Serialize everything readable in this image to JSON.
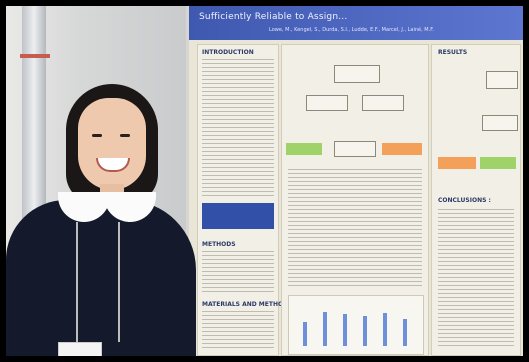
{
  "poster": {
    "title": "Sufficiently Reliable to Assign...",
    "subtitle": "Lowe, M., Kengel, S., Durda, S.I., Ludde, E.F., Marcel, J., Lainé, M.F.",
    "sections": {
      "introduction": "INTRODUCTION",
      "methods": "METHODS",
      "materials_and_methods": "MATERIALS AND METHODS",
      "results": "RESULTS",
      "conclusions": "CONCLUSIONS :"
    }
  },
  "bar_values": [
    0.55,
    0.78,
    0.72,
    0.68,
    0.74,
    0.62
  ]
}
